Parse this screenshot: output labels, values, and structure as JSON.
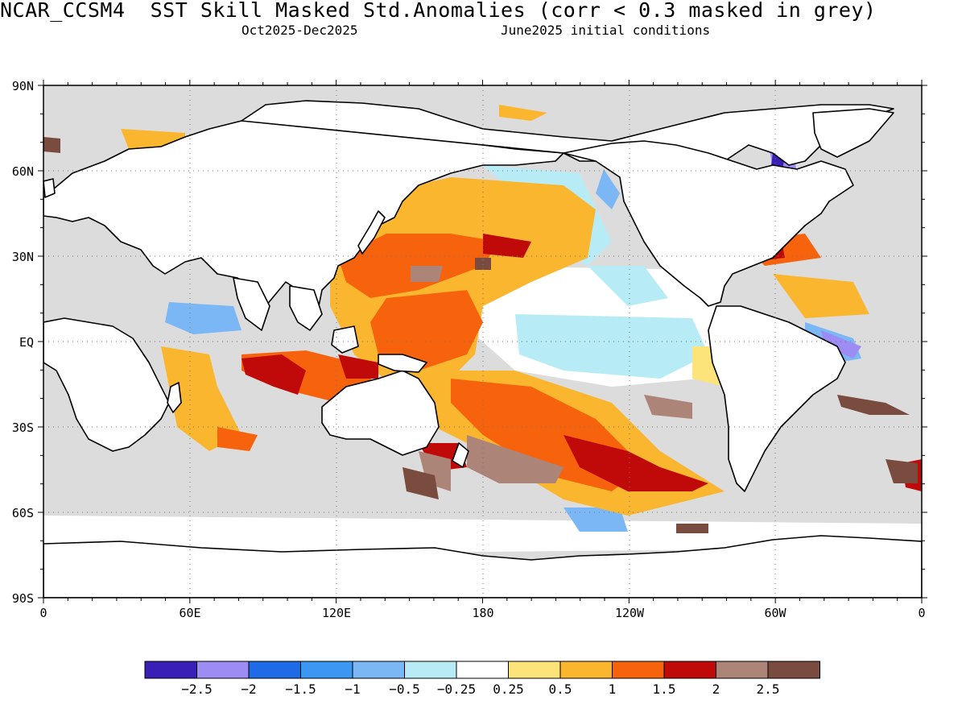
{
  "header": {
    "title": "NCAR_CCSM4  SST Skill Masked Std.Anomalies (corr < 0.3 masked in grey)",
    "period": "Oct2025-Dec2025",
    "init": "June2025 initial conditions"
  },
  "axes": {
    "lat_labels": [
      "90N",
      "60N",
      "30N",
      "EQ",
      "30S",
      "60S",
      "90S"
    ],
    "lon_labels": [
      "0",
      "60E",
      "120E",
      "180",
      "120W",
      "60W",
      "0"
    ]
  },
  "colorbar": {
    "colors": [
      "#3a1fb6",
      "#9c8cf4",
      "#1f6ae6",
      "#3b97f1",
      "#7ab7f4",
      "#b7ecf7",
      "#ffffff",
      "#fde47a",
      "#fbb630",
      "#f7630c",
      "#c00a0a",
      "#ad8478",
      "#7a4c40"
    ],
    "labels": [
      "−2.5",
      "−2",
      "−1.5",
      "−1",
      "−0.5",
      "−0.25",
      "0.25",
      "0.5",
      "1",
      "1.5",
      "2",
      "2.5"
    ]
  },
  "colors": {
    "mask_grey": "#dcdcdc",
    "land": "#ffffff",
    "coast": "#000000"
  }
}
